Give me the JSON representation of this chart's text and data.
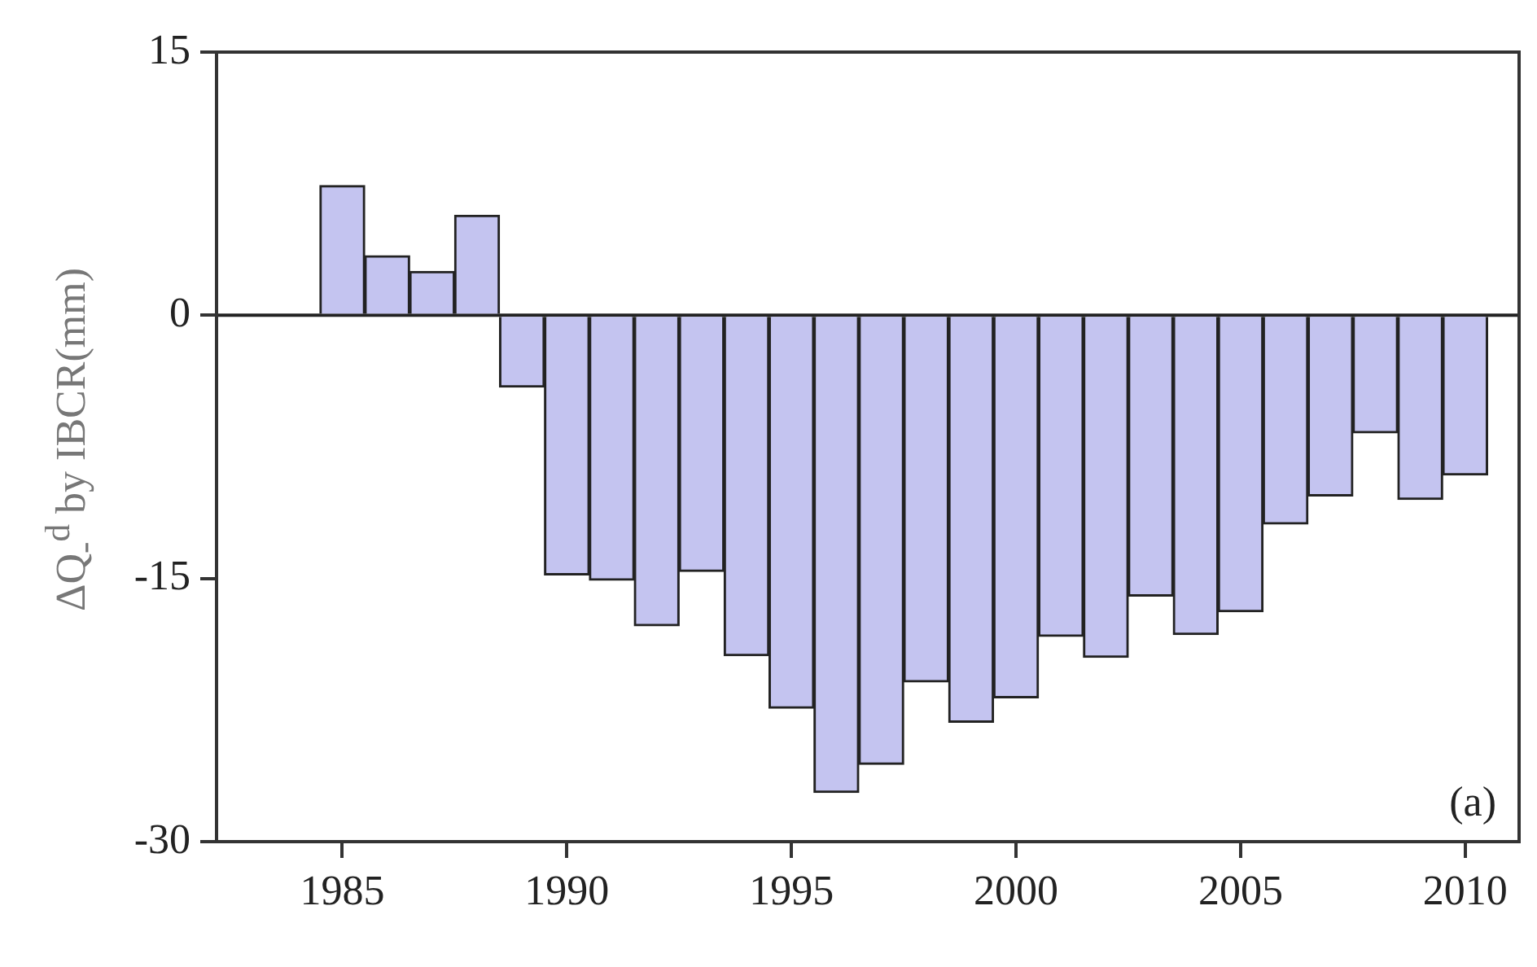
{
  "chart_data": {
    "type": "bar",
    "ylabel": "ΔQ$_{-}$$^{d}$ by IBCR(mm)",
    "x": [
      1985,
      1986,
      1987,
      1988,
      1989,
      1990,
      1991,
      1992,
      1993,
      1994,
      1995,
      1996,
      1997,
      1998,
      1999,
      2000,
      2001,
      2002,
      2003,
      2004,
      2005,
      2006,
      2007,
      2008,
      2009,
      2010
    ],
    "series": [
      {
        "color": "#c4c4f0",
        "values": [
          7.4,
          3.4,
          2.5,
          5.7,
          -4.1,
          -14.8,
          -15.1,
          -17.7,
          -14.6,
          -19.4,
          -22.4,
          -27.2,
          -25.6,
          -20.9,
          -23.2,
          -21.8,
          -18.3,
          -19.5,
          -16.0,
          -18.2,
          -16.9,
          -11.9,
          -10.3,
          -6.7,
          -10.5,
          -9.1
        ]
      }
    ],
    "xlim": [
      1982.2,
      2011.2
    ],
    "xticks": [
      1985,
      1990,
      1995,
      2000,
      2005,
      2010
    ],
    "ylim": [
      -30,
      15
    ],
    "yticks": [
      -30,
      -15,
      0,
      15
    ],
    "ref_lines": [
      {
        "axis": "y",
        "value": 0
      }
    ],
    "annotations": [
      "(a)"
    ],
    "grid": false,
    "legend": false
  }
}
